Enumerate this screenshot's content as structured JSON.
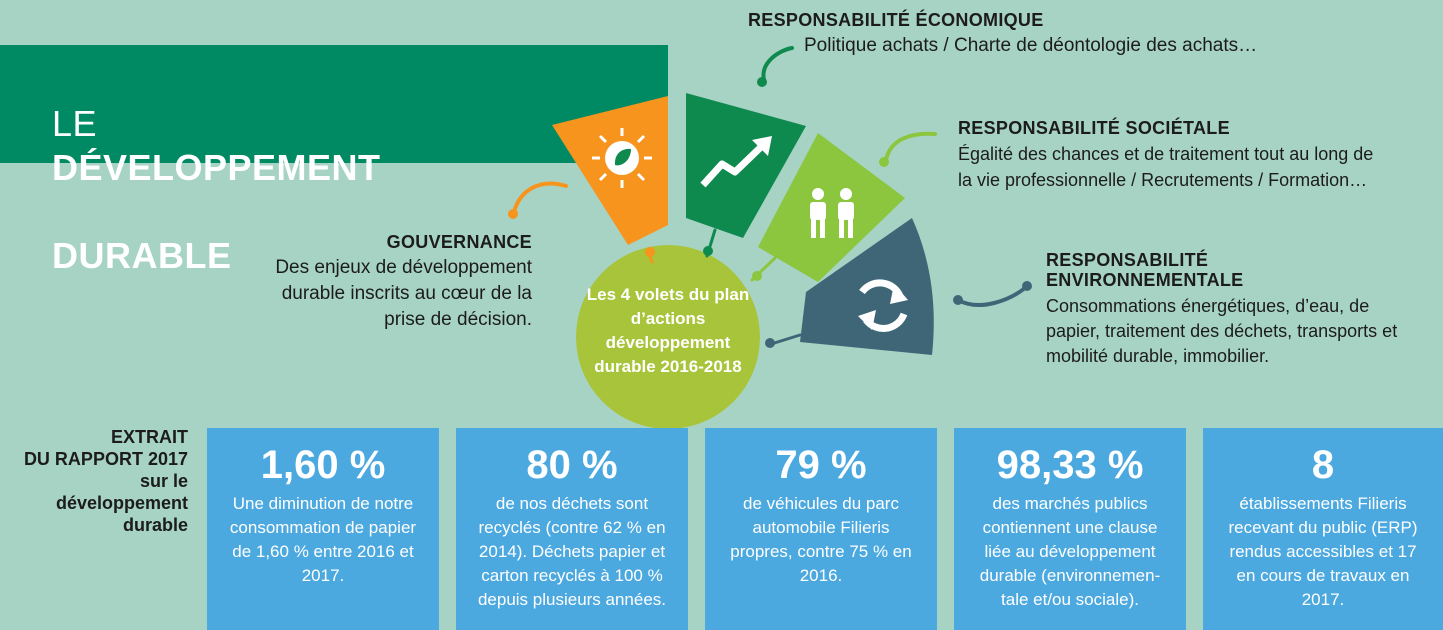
{
  "title": {
    "prefix": "LE",
    "bold_line1": "DÉVELOPPEMENT",
    "bold_line2": "DURABLE"
  },
  "center_label": "Les 4 volets du plan d’actions développement durable 2016-2018",
  "sections": {
    "gouvernance": {
      "heading": "GOUVERNANCE",
      "text": "Des enjeux de développement durable inscrits au cœur de la prise de décision."
    },
    "economique": {
      "heading": "RESPONSABILITÉ ÉCONOMIQUE",
      "text": "Politique achats / Charte de déontologie des achats…"
    },
    "societale": {
      "heading": "RESPONSABILITÉ SOCIÉTALE",
      "text_line1": "Égalité des chances et de traitement tout au long de",
      "text_line2": "la vie professionnelle / Recrutements / Formation…"
    },
    "environnementale": {
      "heading_line1": "RESPONSABILITÉ",
      "heading_line2": "ENVIRONNEMENTALE",
      "text": "Consommations énergétiques, d’eau, de papier, traitement des déchets, transports et mobilité durable, immobilier."
    }
  },
  "extract_label": "EXTRAIT\nDU RAPPORT 2017\nsur le\ndéveloppement\ndurable",
  "stats": [
    {
      "value": "1,60 %",
      "desc": "Une diminution de notre consommation de papier de 1,60 % entre 2016 et 2017."
    },
    {
      "value": "80 %",
      "desc": "de nos déchets sont recyclés (contre 62 % en 2014). Déchets papier et carton recyclés à 100 % depuis plusieurs années."
    },
    {
      "value": "79 %",
      "desc": "de véhicules du parc automobile Filieris propres, contre 75 % en 2016."
    },
    {
      "value": "98,33 %",
      "desc": "des marchés publics contiennent une clause liée au développement durable (environnemen-tale et/ou sociale)."
    },
    {
      "value": "8",
      "desc": "établissements Filieris recevant du public (ERP) rendus accessibles et 17 en cours de travaux en 2017."
    }
  ],
  "colors": {
    "background": "#a7d3c4",
    "banner": "#008a63",
    "gouvernance": "#f7941d",
    "economique": "#0e8a4f",
    "societale": "#8cc63f",
    "environnementale": "#3f6677",
    "center": "#a8c43b",
    "stat_box": "#4ca9e0"
  },
  "icons": [
    "sun-leaf-icon",
    "trending-up-icon",
    "people-icon",
    "recycle-icon"
  ]
}
